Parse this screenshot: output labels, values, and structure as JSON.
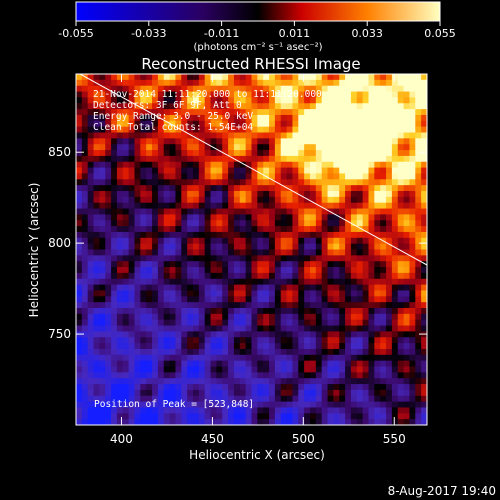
{
  "colorbar": {
    "ticks": [
      "-0.055",
      "-0.033",
      "-0.011",
      "0.011",
      "0.033",
      "0.055"
    ],
    "units_label": "(photons cm⁻² s⁻¹ asec⁻²)"
  },
  "plot": {
    "title": "Reconstructed RHESSI Image",
    "xlabel": "Heliocentric X (arcsec)",
    "ylabel": "Heliocentric Y (arcsec)",
    "x_ticks": [
      "400",
      "450",
      "500",
      "550"
    ],
    "y_ticks": [
      "750",
      "800",
      "850"
    ],
    "xlim": [
      375,
      568
    ],
    "ylim": [
      700,
      893
    ],
    "info_lines": [
      "21-Nov-2014 11:11:20.000 to 11:11:20.000",
      "Detectors: 3F 6F 9F, Att 0",
      "Energy Range: 3.0 - 25.0 keV",
      "Clean    Total counts: 1.54E+04"
    ],
    "peak_label": "Position of Peak = [523,848]"
  },
  "footer": {
    "timestamp": "8-Aug-2017 19:40"
  }
}
